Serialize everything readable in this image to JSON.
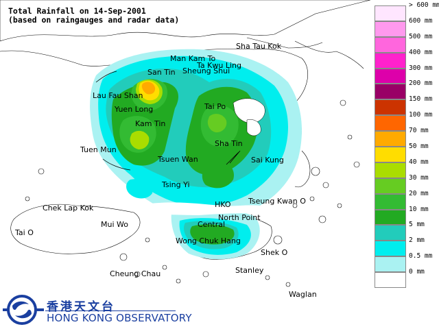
{
  "title": {
    "line1": "Total Rainfall on 14-Sep-2001",
    "line2": "(based on raingauges and radar data)"
  },
  "places": [
    {
      "id": "sha-tau-kok",
      "label": "Sha Tau Kok"
    },
    {
      "id": "man-kam-to",
      "label": "Man Kam To"
    },
    {
      "id": "ta-kwu-ling",
      "label": "Ta Kwu Ling"
    },
    {
      "id": "san-tin",
      "label": "San Tin"
    },
    {
      "id": "sheung-shui",
      "label": "Sheung Shui"
    },
    {
      "id": "lau-fau-shan",
      "label": "Lau Fau Shan"
    },
    {
      "id": "yuen-long",
      "label": "Yuen Long"
    },
    {
      "id": "tai-po",
      "label": "Tai Po"
    },
    {
      "id": "kam-tin",
      "label": "Kam Tin"
    },
    {
      "id": "tuen-mun",
      "label": "Tuen Mun"
    },
    {
      "id": "sha-tin",
      "label": "Sha Tin"
    },
    {
      "id": "tsuen-wan",
      "label": "Tsuen Wan"
    },
    {
      "id": "sai-kung",
      "label": "Sai Kung"
    },
    {
      "id": "tsing-yi",
      "label": "Tsing Yi"
    },
    {
      "id": "chek-lap-kok",
      "label": "Chek Lap Kok"
    },
    {
      "id": "hko",
      "label": "HKO"
    },
    {
      "id": "tseung-kwan-o",
      "label": "Tseung Kwan O"
    },
    {
      "id": "mui-wo",
      "label": "Mui Wo"
    },
    {
      "id": "north-point",
      "label": "North Point"
    },
    {
      "id": "central",
      "label": "Central"
    },
    {
      "id": "tai-o",
      "label": "Tai O"
    },
    {
      "id": "wong-chuk-hang",
      "label": "Wong Chuk Hang"
    },
    {
      "id": "shek-o",
      "label": "Shek O"
    },
    {
      "id": "cheung-chau",
      "label": "Cheung Chau"
    },
    {
      "id": "stanley",
      "label": "Stanley"
    },
    {
      "id": "waglan",
      "label": "Waglan"
    }
  ],
  "legend": [
    {
      "label": "> 600 mm",
      "color": "#ffe6ff"
    },
    {
      "label": "600 mm",
      "color": "#ff99ee"
    },
    {
      "label": "500 mm",
      "color": "#ff66dd"
    },
    {
      "label": "400 mm",
      "color": "#ff22cc"
    },
    {
      "label": "300 mm",
      "color": "#dd00aa"
    },
    {
      "label": "200 mm",
      "color": "#990066"
    },
    {
      "label": "150 mm",
      "color": "#cc3300"
    },
    {
      "label": "100 mm",
      "color": "#ff6600"
    },
    {
      "label": "70 mm",
      "color": "#ffaa00"
    },
    {
      "label": "50 mm",
      "color": "#ffdd00"
    },
    {
      "label": "40 mm",
      "color": "#aadd00"
    },
    {
      "label": "30 mm",
      "color": "#66cc22"
    },
    {
      "label": "20 mm",
      "color": "#33bb33"
    },
    {
      "label": "10 mm",
      "color": "#22aa22"
    },
    {
      "label": "5 mm",
      "color": "#22ccbb"
    },
    {
      "label": "2 mm",
      "color": "#00eeee"
    },
    {
      "label": "0.5 mm",
      "color": "#aaf2f2"
    },
    {
      "label": "0 mm",
      "color": "#ffffff"
    }
  ],
  "logo": {
    "name_cn": "香港天文台",
    "name_en": "HONG KONG OBSERVATORY",
    "color": "#1a3fa0"
  }
}
